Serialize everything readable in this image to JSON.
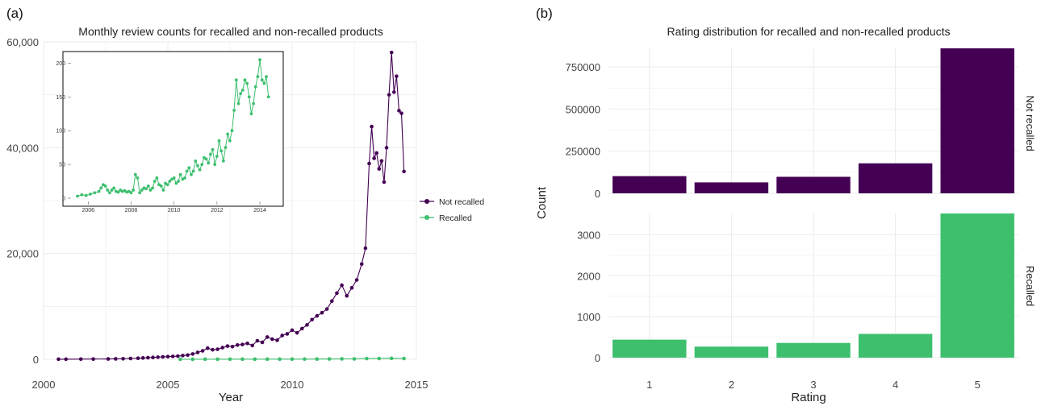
{
  "colors": {
    "not_recalled": "#440154",
    "recalled": "#3dbf6e",
    "grid": "#ebebeb"
  },
  "panels": {
    "a": {
      "label": "(a)"
    },
    "b": {
      "label": "(b)"
    }
  },
  "chart_data": [
    {
      "type": "line",
      "panel": "(a)",
      "title": "Monthly review counts for recalled and non-recalled products",
      "xlabel": "Year",
      "ylabel": "",
      "xlim": [
        2000,
        2015
      ],
      "ylim": [
        0,
        60000
      ],
      "x_ticks": [
        "2000",
        "2005",
        "2010",
        "2015"
      ],
      "y_ticks": [
        "0",
        "20,000",
        "40,000",
        "60,000"
      ],
      "grid": true,
      "legend": "right",
      "series": [
        {
          "name": "Not recalled",
          "color": "#440154",
          "x": [
            2000.6,
            2000.9,
            2001.5,
            2002.0,
            2002.6,
            2002.9,
            2003.2,
            2003.5,
            2003.8,
            2004.0,
            2004.2,
            2004.4,
            2004.6,
            2004.8,
            2005.0,
            2005.2,
            2005.4,
            2005.6,
            2005.8,
            2006.0,
            2006.2,
            2006.4,
            2006.6,
            2006.8,
            2007.0,
            2007.2,
            2007.4,
            2007.6,
            2007.8,
            2008.0,
            2008.2,
            2008.4,
            2008.6,
            2008.8,
            2009.0,
            2009.2,
            2009.4,
            2009.6,
            2009.8,
            2010.0,
            2010.2,
            2010.4,
            2010.6,
            2010.8,
            2011.0,
            2011.2,
            2011.4,
            2011.6,
            2011.8,
            2012.0,
            2012.2,
            2012.4,
            2012.6,
            2012.8,
            2012.95,
            2013.1,
            2013.2,
            2013.3,
            2013.4,
            2013.5,
            2013.6,
            2013.7,
            2013.8,
            2013.9,
            2014.0,
            2014.1,
            2014.2,
            2014.3,
            2014.4,
            2014.5
          ],
          "y": [
            20,
            20,
            30,
            40,
            60,
            80,
            100,
            150,
            200,
            250,
            300,
            350,
            400,
            450,
            500,
            550,
            600,
            700,
            800,
            1000,
            1300,
            1600,
            2100,
            1800,
            1900,
            2200,
            2500,
            2400,
            2700,
            2800,
            3000,
            2600,
            3500,
            3200,
            4200,
            3800,
            3600,
            4500,
            4800,
            5500,
            5000,
            5800,
            6500,
            7500,
            8200,
            8800,
            9500,
            11000,
            12500,
            14000,
            12000,
            13500,
            15000,
            18000,
            21000,
            37000,
            44000,
            38000,
            39000,
            36000,
            37500,
            33500,
            40000,
            50000,
            58000,
            50500,
            53500,
            47000,
            46500,
            35500
          ]
        },
        {
          "name": "Recalled",
          "color": "#3dbf6e",
          "x": [
            2005.5,
            2006.0,
            2006.5,
            2007.0,
            2007.5,
            2008.0,
            2008.5,
            2009.0,
            2009.5,
            2010.0,
            2010.5,
            2011.0,
            2011.5,
            2012.0,
            2012.5,
            2013.0,
            2013.5,
            2014.0,
            2014.5
          ],
          "y": [
            5,
            8,
            15,
            15,
            10,
            25,
            15,
            25,
            25,
            30,
            35,
            45,
            50,
            80,
            70,
            140,
            150,
            180,
            150
          ]
        }
      ],
      "inset": {
        "xlim": [
          2005.2,
          2014.9
        ],
        "ylim": [
          0,
          210
        ],
        "x_ticks": [
          "2006",
          "2008",
          "2010",
          "2012",
          "2014"
        ],
        "y_ticks": [
          "0",
          "50",
          "100",
          "150",
          "200"
        ],
        "series": "Recalled",
        "x": [
          2005.5,
          2005.7,
          2005.9,
          2006.1,
          2006.3,
          2006.5,
          2006.6,
          2006.7,
          2006.8,
          2006.9,
          2007.0,
          2007.1,
          2007.2,
          2007.3,
          2007.4,
          2007.5,
          2007.6,
          2007.7,
          2007.8,
          2007.9,
          2008.0,
          2008.1,
          2008.2,
          2008.3,
          2008.4,
          2008.5,
          2008.6,
          2008.7,
          2008.8,
          2008.9,
          2009.0,
          2009.1,
          2009.2,
          2009.3,
          2009.4,
          2009.5,
          2009.6,
          2009.7,
          2009.8,
          2009.9,
          2010.0,
          2010.1,
          2010.2,
          2010.3,
          2010.4,
          2010.5,
          2010.6,
          2010.7,
          2010.8,
          2010.9,
          2011.0,
          2011.1,
          2011.2,
          2011.3,
          2011.4,
          2011.5,
          2011.6,
          2011.7,
          2011.8,
          2011.9,
          2012.0,
          2012.1,
          2012.2,
          2012.3,
          2012.4,
          2012.5,
          2012.6,
          2012.7,
          2012.8,
          2012.9,
          2013.0,
          2013.1,
          2013.2,
          2013.3,
          2013.4,
          2013.5,
          2013.6,
          2013.7,
          2013.8,
          2013.9,
          2014.0,
          2014.1,
          2014.2,
          2014.3,
          2014.4
        ],
        "y": [
          3,
          5,
          4,
          6,
          8,
          10,
          15,
          20,
          18,
          12,
          8,
          12,
          15,
          10,
          9,
          12,
          10,
          11,
          9,
          10,
          8,
          12,
          35,
          30,
          8,
          12,
          15,
          14,
          18,
          12,
          15,
          25,
          30,
          20,
          18,
          12,
          22,
          20,
          25,
          28,
          30,
          22,
          25,
          35,
          28,
          30,
          40,
          45,
          35,
          40,
          55,
          48,
          42,
          50,
          60,
          58,
          52,
          65,
          72,
          50,
          62,
          85,
          70,
          55,
          75,
          95,
          85,
          100,
          130,
          175,
          140,
          155,
          160,
          175,
          170,
          150,
          125,
          140,
          165,
          180,
          205,
          175,
          170,
          180,
          150
        ]
      }
    },
    {
      "type": "bar",
      "panel": "(b)",
      "title": "Rating distribution for recalled and non-recalled products",
      "xlabel": "Rating",
      "ylabel": "Count",
      "categories": [
        "1",
        "2",
        "3",
        "4",
        "5"
      ],
      "grid": true,
      "facets": [
        {
          "name": "Not recalled",
          "color": "#440154",
          "values": [
            102000,
            65000,
            98000,
            178000,
            860000
          ],
          "ylim": [
            0,
            860000
          ],
          "y_ticks": [
            0,
            250000,
            500000,
            750000
          ],
          "y_tick_labels": [
            "0",
            "250000",
            "500000",
            "750000"
          ]
        },
        {
          "name": "Recalled",
          "color": "#3dbf6e",
          "values": [
            440,
            270,
            360,
            580,
            3520
          ],
          "ylim": [
            0,
            3520
          ],
          "y_ticks": [
            0,
            1000,
            2000,
            3000
          ],
          "y_tick_labels": [
            "0",
            "1000",
            "2000",
            "3000"
          ]
        }
      ]
    }
  ]
}
